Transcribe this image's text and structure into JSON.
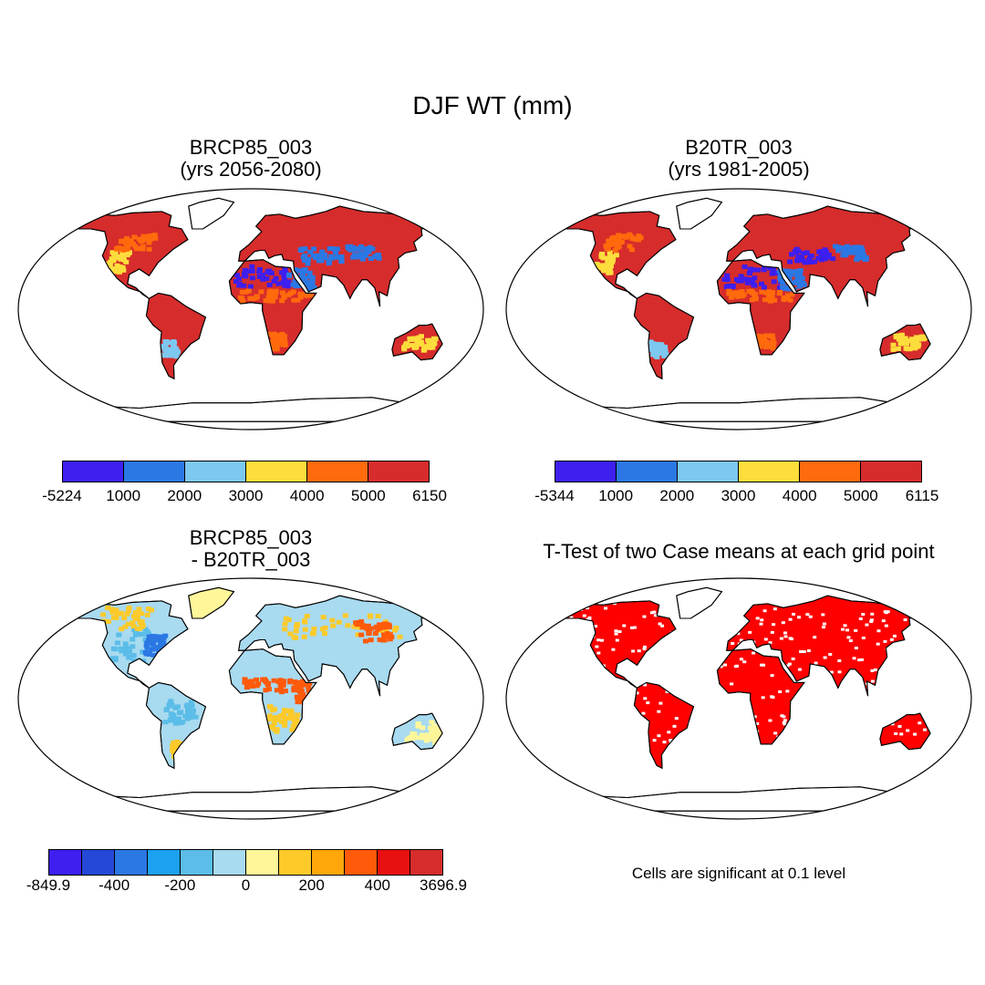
{
  "title": "DJF WT (mm)",
  "panels": [
    {
      "title_line1": "BRCP85_003",
      "title_line2": "(yrs 2056-2080)"
    },
    {
      "title_line1": "B20TR_003",
      "title_line2": "(yrs 1981-2005)"
    },
    {
      "title_line1": "BRCP85_003",
      "title_line2": "- B20TR_003"
    },
    {
      "title_line1": "T-Test of two Case means at each grid point",
      "title_line2": ""
    }
  ],
  "colorbars": {
    "top_left": {
      "colors": [
        "#3d1ff0",
        "#2b78e4",
        "#7dc8f0",
        "#fddd3c",
        "#ff6a0d",
        "#d62c2c"
      ],
      "labels": [
        "-5224",
        "1000",
        "2000",
        "3000",
        "4000",
        "5000",
        "6150"
      ]
    },
    "top_right": {
      "colors": [
        "#3d1ff0",
        "#2b78e4",
        "#7dc8f0",
        "#fddd3c",
        "#ff6a0d",
        "#d62c2c"
      ],
      "labels": [
        "-5344",
        "1000",
        "2000",
        "3000",
        "4000",
        "5000",
        "6115"
      ]
    },
    "bottom_left": {
      "colors": [
        "#3d1ff0",
        "#2648d8",
        "#2b78e4",
        "#1ba1f0",
        "#5bbde8",
        "#a8daf0",
        "#fff69a",
        "#fdca2a",
        "#ffa70a",
        "#ff5a0a",
        "#e81010",
        "#d62c2c"
      ],
      "labels": [
        "-849.9",
        "-400",
        "-200",
        "0",
        "200",
        "400",
        "3696.9"
      ]
    }
  },
  "significance_note": "Cells are significant at 0.1 level",
  "significance_color": "#ff0000"
}
